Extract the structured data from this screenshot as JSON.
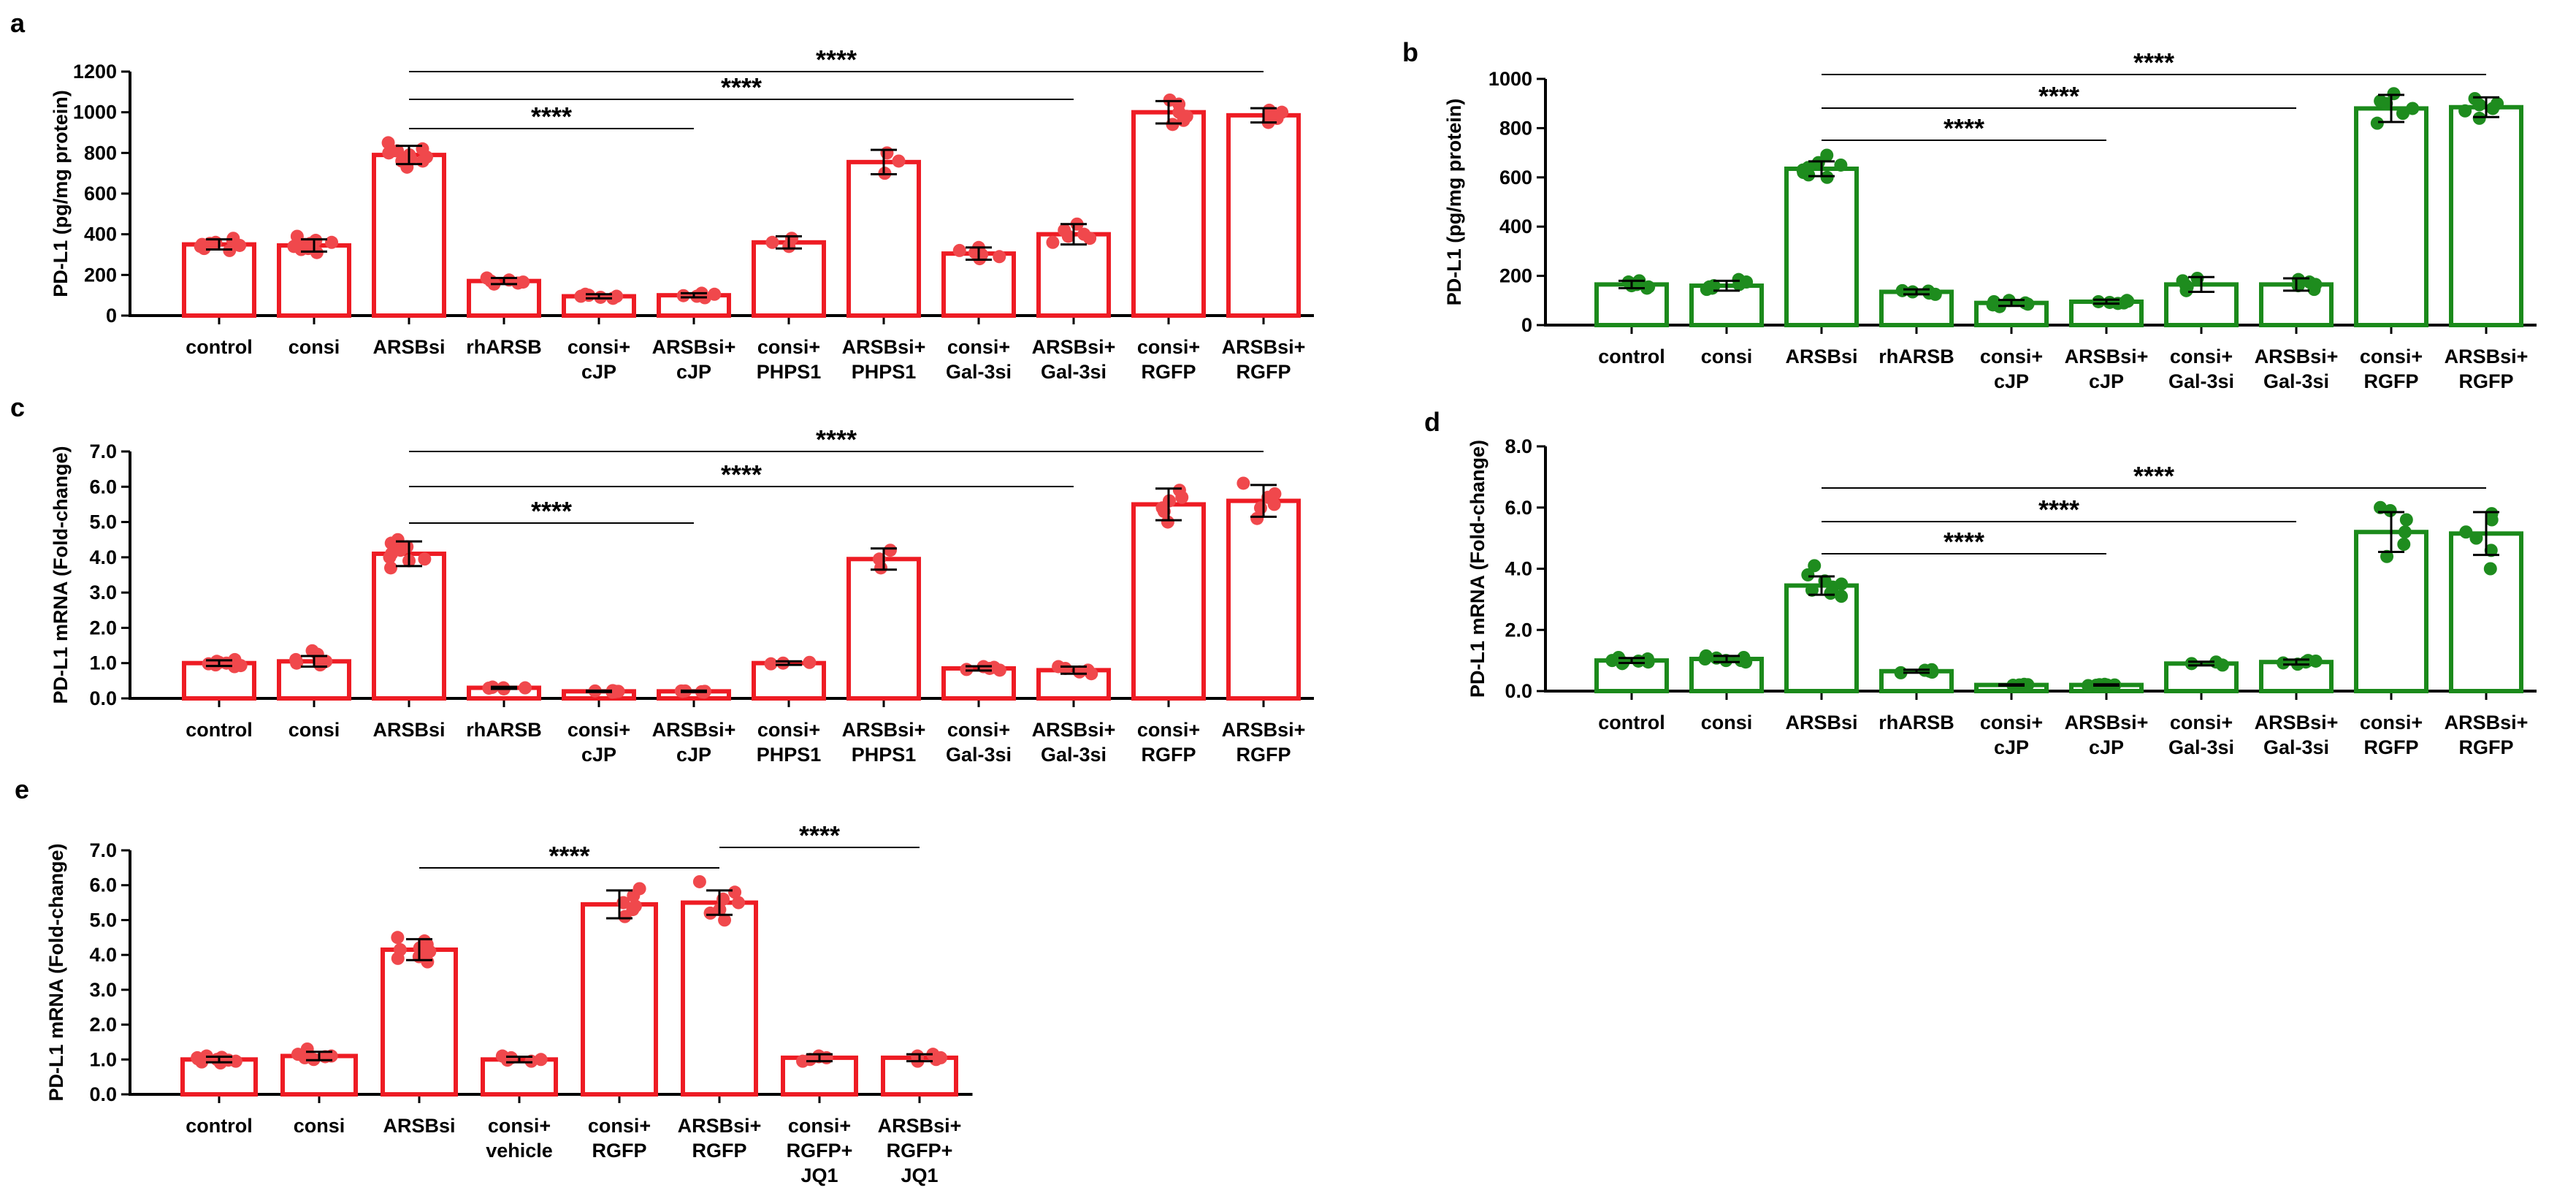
{
  "colors": {
    "red": "#ee1c24",
    "redDot": "#f0484c",
    "green": "#1b8a1b",
    "greenDot": "#1e8c1e"
  },
  "chart_data": [
    {
      "panel": "a",
      "type": "bar",
      "ylabel": "PD-L1 (pg/mg protein)",
      "ylim": [
        0,
        1200
      ],
      "yticks": [
        "0",
        "200",
        "400",
        "600",
        "800",
        "1000",
        "1200"
      ],
      "color": "red",
      "categories": [
        [
          "control"
        ],
        [
          "consi"
        ],
        [
          "ARSBsi"
        ],
        [
          "rhARSB"
        ],
        [
          "consi+",
          "cJP"
        ],
        [
          "ARSBsi+",
          "cJP"
        ],
        [
          "consi+",
          "PHPS1"
        ],
        [
          "ARSBsi+",
          "PHPS1"
        ],
        [
          "consi+",
          "Gal-3si"
        ],
        [
          "ARSBsi+",
          "Gal-3si"
        ],
        [
          "consi+",
          "RGFP"
        ],
        [
          "ARSBsi+",
          "RGFP"
        ]
      ],
      "values": [
        350,
        345,
        790,
        170,
        95,
        100,
        360,
        755,
        305,
        400,
        1000,
        985
      ],
      "errors": [
        25,
        30,
        45,
        15,
        10,
        10,
        30,
        60,
        30,
        50,
        55,
        35
      ],
      "points": [
        [
          320,
          340,
          360,
          380,
          330,
          370,
          350,
          345,
          355
        ],
        [
          310,
          330,
          350,
          370,
          390,
          340,
          360,
          325,
          355
        ],
        [
          730,
          760,
          780,
          800,
          820,
          850,
          770,
          810,
          790,
          760
        ],
        [
          155,
          165,
          175,
          185,
          170,
          160
        ],
        [
          85,
          90,
          95,
          100,
          105,
          95
        ],
        [
          88,
          95,
          100,
          105,
          110,
          98
        ],
        [
          340,
          380,
          360
        ],
        [
          700,
          800,
          760
        ],
        [
          280,
          300,
          320,
          335,
          290,
          310
        ],
        [
          360,
          390,
          420,
          450,
          380,
          400
        ],
        [
          940,
          980,
          1000,
          1040,
          1060,
          960
        ],
        [
          950,
          970,
          990,
          1010,
          1000,
          985
        ]
      ],
      "significance": [
        {
          "from": 2,
          "to": 5,
          "label": "****"
        },
        {
          "from": 2,
          "to": 9,
          "label": "****"
        },
        {
          "from": 2,
          "to": 11,
          "label": "****"
        }
      ]
    },
    {
      "panel": "b",
      "type": "bar",
      "ylabel": "PD-L1 (pg/mg protein)",
      "ylim": [
        0,
        1000
      ],
      "yticks": [
        "0",
        "200",
        "400",
        "600",
        "800",
        "1000"
      ],
      "color": "green",
      "categories": [
        [
          "control"
        ],
        [
          "consi"
        ],
        [
          "ARSBsi"
        ],
        [
          "rhARSB"
        ],
        [
          "consi+",
          "cJP"
        ],
        [
          "ARSBsi+",
          "cJP"
        ],
        [
          "consi+",
          "Gal-3si"
        ],
        [
          "ARSBsi+",
          "Gal-3si"
        ],
        [
          "consi+",
          "RGFP"
        ],
        [
          "ARSBsi+",
          "RGFP"
        ]
      ],
      "values": [
        165,
        160,
        635,
        135,
        90,
        95,
        165,
        165,
        880,
        885
      ],
      "errors": [
        15,
        20,
        30,
        10,
        12,
        8,
        30,
        25,
        55,
        40
      ],
      "points": [
        [
          150,
          160,
          170,
          175,
          165,
          155,
          180
        ],
        [
          145,
          155,
          165,
          175,
          185,
          160,
          150
        ],
        [
          600,
          620,
          640,
          660,
          690,
          610,
          630,
          650
        ],
        [
          125,
          135,
          140,
          130,
          138
        ],
        [
          75,
          85,
          95,
          100,
          90,
          82
        ],
        [
          88,
          92,
          97,
          100,
          95,
          90
        ],
        [
          140,
          160,
          180,
          190,
          155
        ],
        [
          145,
          160,
          175,
          185,
          165
        ],
        [
          820,
          860,
          900,
          940,
          880,
          910
        ],
        [
          840,
          870,
          900,
          920,
          880,
          895
        ]
      ],
      "significance": [
        {
          "from": 2,
          "to": 5,
          "label": "****"
        },
        {
          "from": 2,
          "to": 7,
          "label": "****"
        },
        {
          "from": 2,
          "to": 9,
          "label": "****"
        }
      ]
    },
    {
      "panel": "c",
      "type": "bar",
      "ylabel": "PD-L1 mRNA (Fold-change)",
      "ylim": [
        0,
        7
      ],
      "yticks": [
        "0.0",
        "1.0",
        "2.0",
        "3.0",
        "4.0",
        "5.0",
        "6.0",
        "7.0"
      ],
      "color": "red",
      "categories": [
        [
          "control"
        ],
        [
          "consi"
        ],
        [
          "ARSBsi"
        ],
        [
          "rhARSB"
        ],
        [
          "consi+",
          "cJP"
        ],
        [
          "ARSBsi+",
          "cJP"
        ],
        [
          "consi+",
          "PHPS1"
        ],
        [
          "ARSBsi+",
          "PHPS1"
        ],
        [
          "consi+",
          "Gal-3si"
        ],
        [
          "ARSBsi+",
          "Gal-3si"
        ],
        [
          "consi+",
          "RGFP"
        ],
        [
          "ARSBsi+",
          "RGFP"
        ]
      ],
      "values": [
        1.0,
        1.05,
        4.1,
        0.3,
        0.2,
        0.2,
        1.0,
        3.95,
        0.85,
        0.8,
        5.5,
        5.6
      ],
      "errors": [
        0.08,
        0.15,
        0.35,
        0.03,
        0.02,
        0.02,
        0.05,
        0.3,
        0.06,
        0.1,
        0.45,
        0.45
      ],
      "points": [
        [
          0.9,
          0.95,
          1.0,
          1.05,
          1.1,
          0.98,
          1.02,
          0.93
        ],
        [
          0.95,
          1.0,
          1.1,
          1.25,
          1.35,
          1.05,
          0.98
        ],
        [
          3.7,
          3.9,
          4.0,
          4.2,
          4.4,
          4.5,
          4.1,
          3.95,
          4.3
        ],
        [
          0.27,
          0.3,
          0.32,
          0.29,
          0.31,
          0.3
        ],
        [
          0.18,
          0.2,
          0.21,
          0.19,
          0.2,
          0.22
        ],
        [
          0.18,
          0.2,
          0.21,
          0.19,
          0.2,
          0.21
        ],
        [
          0.98,
          1.02,
          1.0
        ],
        [
          3.7,
          4.2,
          3.95
        ],
        [
          0.8,
          0.85,
          0.9,
          0.82,
          0.88
        ],
        [
          0.7,
          0.75,
          0.85,
          0.9,
          0.8
        ],
        [
          5.0,
          5.3,
          5.6,
          5.9,
          5.4,
          5.7
        ],
        [
          5.1,
          5.4,
          5.7,
          6.1,
          5.5,
          5.8
        ]
      ],
      "significance": [
        {
          "from": 2,
          "to": 5,
          "label": "****"
        },
        {
          "from": 2,
          "to": 9,
          "label": "****"
        },
        {
          "from": 2,
          "to": 11,
          "label": "****"
        }
      ]
    },
    {
      "panel": "d",
      "type": "bar",
      "ylabel": "PD-L1 mRNA (Fold-change)",
      "ylim": [
        0,
        8
      ],
      "yticks": [
        "0.0",
        "2.0",
        "4.0",
        "6.0",
        "8.0"
      ],
      "color": "green",
      "categories": [
        [
          "control"
        ],
        [
          "consi"
        ],
        [
          "ARSBsi"
        ],
        [
          "rhARSB"
        ],
        [
          "consi+",
          "cJP"
        ],
        [
          "ARSBsi+",
          "cJP"
        ],
        [
          "consi+",
          "Gal-3si"
        ],
        [
          "ARSBsi+",
          "Gal-3si"
        ],
        [
          "consi+",
          "RGFP"
        ],
        [
          "ARSBsi+",
          "RGFP"
        ]
      ],
      "values": [
        1.0,
        1.05,
        3.45,
        0.65,
        0.2,
        0.2,
        0.9,
        0.95,
        5.2,
        5.15
      ],
      "errors": [
        0.08,
        0.1,
        0.3,
        0.05,
        0.02,
        0.02,
        0.06,
        0.08,
        0.65,
        0.7
      ],
      "points": [
        [
          0.9,
          0.95,
          1.0,
          1.05,
          1.1,
          0.98,
          0.93
        ],
        [
          0.95,
          1.0,
          1.1,
          1.15,
          1.05,
          1.0,
          1.08
        ],
        [
          3.1,
          3.3,
          3.5,
          3.6,
          3.8,
          4.1,
          3.4,
          3.2
        ],
        [
          0.6,
          0.65,
          0.7,
          0.62,
          0.68
        ],
        [
          0.18,
          0.2,
          0.22,
          0.19,
          0.21,
          0.2
        ],
        [
          0.18,
          0.2,
          0.21,
          0.19,
          0.2,
          0.22
        ],
        [
          0.85,
          0.9,
          0.95
        ],
        [
          0.88,
          0.95,
          1.0,
          0.92,
          0.98
        ],
        [
          4.4,
          4.8,
          5.2,
          5.6,
          5.9,
          6.0
        ],
        [
          4.0,
          4.6,
          5.2,
          5.6,
          5.8,
          5.0
        ]
      ],
      "significance": [
        {
          "from": 2,
          "to": 5,
          "label": "****"
        },
        {
          "from": 2,
          "to": 7,
          "label": "****"
        },
        {
          "from": 2,
          "to": 9,
          "label": "****"
        }
      ]
    },
    {
      "panel": "e",
      "type": "bar",
      "ylabel": "PD-L1 mRNA (Fold-change)",
      "ylim": [
        0,
        7
      ],
      "yticks": [
        "0.0",
        "1.0",
        "2.0",
        "3.0",
        "4.0",
        "5.0",
        "6.0",
        "7.0"
      ],
      "color": "red",
      "categories": [
        [
          "control"
        ],
        [
          "consi"
        ],
        [
          "ARSBsi"
        ],
        [
          "consi+",
          "vehicle"
        ],
        [
          "consi+",
          "RGFP"
        ],
        [
          "ARSBsi+",
          "RGFP"
        ],
        [
          "consi+",
          "RGFP+",
          "JQ1"
        ],
        [
          "ARSBsi+",
          "RGFP+",
          "JQ1"
        ]
      ],
      "values": [
        1.0,
        1.1,
        4.15,
        1.0,
        5.45,
        5.5,
        1.05,
        1.05
      ],
      "errors": [
        0.08,
        0.12,
        0.3,
        0.08,
        0.4,
        0.35,
        0.1,
        0.1
      ],
      "points": [
        [
          0.9,
          0.95,
          1.0,
          1.05,
          1.1,
          0.98,
          1.02,
          0.93,
          1.06
        ],
        [
          1.0,
          1.05,
          1.1,
          1.2,
          1.3,
          1.15,
          1.08
        ],
        [
          3.8,
          3.9,
          4.0,
          4.2,
          4.4,
          4.5,
          4.1,
          4.3,
          3.95,
          4.15
        ],
        [
          0.95,
          1.0,
          1.05,
          1.1,
          0.98
        ],
        [
          5.1,
          5.3,
          5.5,
          5.7,
          5.9,
          5.4
        ],
        [
          5.0,
          5.3,
          5.5,
          5.8,
          6.1,
          5.6,
          5.2
        ],
        [
          0.95,
          1.05,
          1.1,
          1.0,
          1.08
        ],
        [
          0.95,
          1.05,
          1.1,
          1.15,
          1.0
        ]
      ],
      "significance": [
        {
          "from": 2,
          "to": 5,
          "label": "****"
        },
        {
          "from": 5,
          "to": 7,
          "label": "****"
        }
      ]
    }
  ]
}
